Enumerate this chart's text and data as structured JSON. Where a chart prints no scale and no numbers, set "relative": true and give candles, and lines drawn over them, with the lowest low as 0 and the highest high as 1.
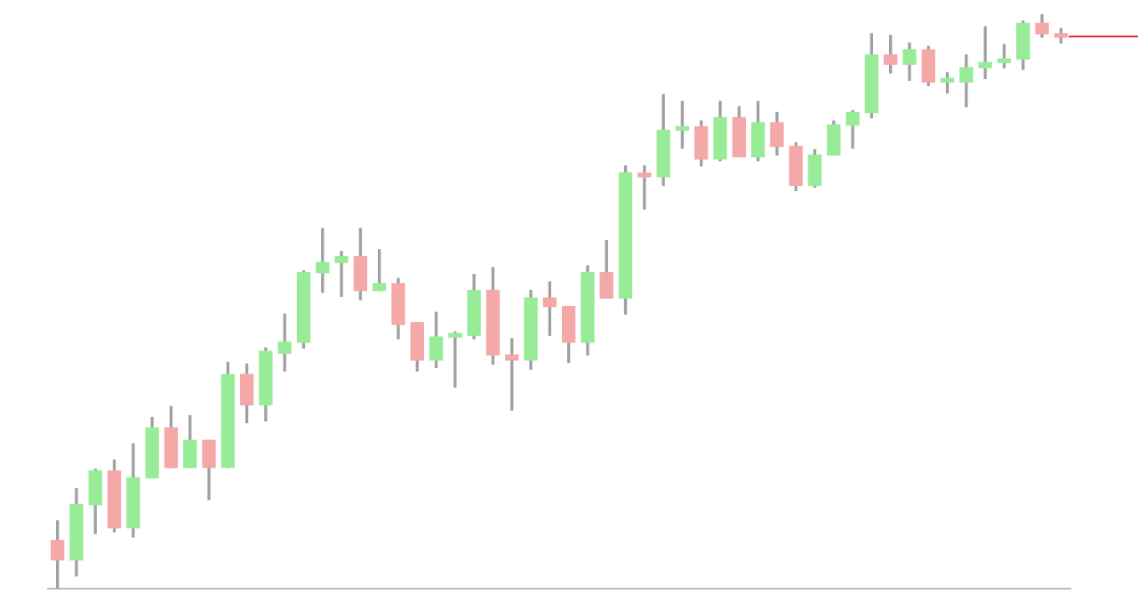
{
  "chart_data": {
    "type": "candlestick",
    "relative": true,
    "tick_labels": false,
    "grid": false,
    "legend": false,
    "categories": [
      null,
      null,
      null,
      null,
      null,
      null,
      null,
      null,
      null,
      null,
      null,
      null,
      null,
      null,
      null,
      null,
      null,
      null,
      null,
      null,
      null,
      null,
      null,
      null,
      null,
      null,
      null,
      null,
      null,
      null,
      null,
      null,
      null,
      null,
      null,
      null,
      null,
      null,
      null,
      null,
      null,
      null,
      null,
      null,
      null,
      null,
      null,
      null,
      null,
      null,
      null,
      null,
      null,
      null
    ],
    "ohlc": [
      [
        0.084,
        0.118,
        0,
        0.05
      ],
      [
        0.05,
        0.174,
        0.022,
        0.146
      ],
      [
        0.146,
        0.208,
        0.096,
        0.205
      ],
      [
        0.205,
        0.224,
        0.099,
        0.106
      ],
      [
        0.106,
        0.252,
        0.09,
        0.193
      ],
      [
        0.193,
        0.298,
        0.193,
        0.28
      ],
      [
        0.28,
        0.317,
        0.211,
        0.211
      ],
      [
        0.211,
        0.301,
        0.211,
        0.258
      ],
      [
        0.258,
        0.258,
        0.155,
        0.211
      ],
      [
        0.211,
        0.394,
        0.211,
        0.373
      ],
      [
        0.373,
        0.391,
        0.289,
        0.32
      ],
      [
        0.32,
        0.419,
        0.292,
        0.413
      ],
      [
        0.41,
        0.478,
        0.379,
        0.429
      ],
      [
        0.429,
        0.553,
        0.419,
        0.55
      ],
      [
        0.55,
        0.627,
        0.516,
        0.568
      ],
      [
        0.568,
        0.587,
        0.509,
        0.578
      ],
      [
        0.578,
        0.627,
        0.503,
        0.519
      ],
      [
        0.519,
        0.59,
        0.519,
        0.531
      ],
      [
        0.531,
        0.54,
        0.435,
        0.46
      ],
      [
        0.463,
        0.463,
        0.379,
        0.398
      ],
      [
        0.398,
        0.481,
        0.385,
        0.438
      ],
      [
        0.438,
        0.447,
        0.351,
        0.444
      ],
      [
        0.441,
        0.547,
        0.435,
        0.519
      ],
      [
        0.519,
        0.559,
        0.391,
        0.407
      ],
      [
        0.407,
        0.435,
        0.311,
        0.398
      ],
      [
        0.398,
        0.519,
        0.382,
        0.506
      ],
      [
        0.506,
        0.534,
        0.441,
        0.491
      ],
      [
        0.491,
        0.491,
        0.394,
        0.429
      ],
      [
        0.429,
        0.562,
        0.407,
        0.55
      ],
      [
        0.55,
        0.606,
        0.506,
        0.506
      ],
      [
        0.506,
        0.736,
        0.478,
        0.724
      ],
      [
        0.72,
        0.736,
        0.661,
        0.717
      ],
      [
        0.717,
        0.86,
        0.702,
        0.798
      ],
      [
        0.798,
        0.848,
        0.767,
        0.804
      ],
      [
        0.804,
        0.814,
        0.736,
        0.748
      ],
      [
        0.748,
        0.848,
        0.745,
        0.82
      ],
      [
        0.82,
        0.839,
        0.752,
        0.752
      ],
      [
        0.752,
        0.848,
        0.745,
        0.811
      ],
      [
        0.811,
        0.829,
        0.755,
        0.77
      ],
      [
        0.77,
        0.776,
        0.693,
        0.702
      ],
      [
        0.702,
        0.764,
        0.699,
        0.755
      ],
      [
        0.755,
        0.814,
        0.755,
        0.807
      ],
      [
        0.807,
        0.832,
        0.767,
        0.829
      ],
      [
        0.829,
        0.966,
        0.82,
        0.929
      ],
      [
        0.929,
        0.963,
        0.898,
        0.913
      ],
      [
        0.913,
        0.95,
        0.885,
        0.938
      ],
      [
        0.938,
        0.944,
        0.876,
        0.882
      ],
      [
        0.882,
        0.898,
        0.863,
        0.885
      ],
      [
        0.882,
        0.929,
        0.839,
        0.907
      ],
      [
        0.907,
        0.978,
        0.888,
        0.916
      ],
      [
        0.916,
        0.947,
        0.907,
        0.922
      ],
      [
        0.922,
        0.988,
        0.904,
        0.984
      ],
      [
        0.984,
        1,
        0.96,
        0.966
      ],
      [
        0.966,
        0.975,
        0.95,
        0.96
      ]
    ],
    "colors": [
      "#f4a8a8",
      "#98ec98",
      "#98ec98",
      "#f4a8a8",
      "#98ec98",
      "#98ec98",
      "#f4a8a8",
      "#98ec98",
      "#f4a8a8",
      "#98ec98",
      "#f4a8a8",
      "#98ec98",
      "#98ec98",
      "#98ec98",
      "#98ec98",
      "#98ec98",
      "#f4a8a8",
      "#98ec98",
      "#f4a8a8",
      "#f4a8a8",
      "#98ec98",
      "#98ec98",
      "#98ec98",
      "#f4a8a8",
      "#f4a8a8",
      "#98ec98",
      "#f4a8a8",
      "#f4a8a8",
      "#98ec98",
      "#f4a8a8",
      "#98ec98",
      "#f4a8a8",
      "#98ec98",
      "#98ec98",
      "#f4a8a8",
      "#98ec98",
      "#f4a8a8",
      "#98ec98",
      "#f4a8a8",
      "#f4a8a8",
      "#98ec98",
      "#98ec98",
      "#98ec98",
      "#98ec98",
      "#f4a8a8",
      "#98ec98",
      "#f4a8a8",
      "#98ec98",
      "#98ec98",
      "#98ec98",
      "#98ec98",
      "#98ec98",
      "#f4a8a8",
      "#f4a8a8"
    ]
  }
}
